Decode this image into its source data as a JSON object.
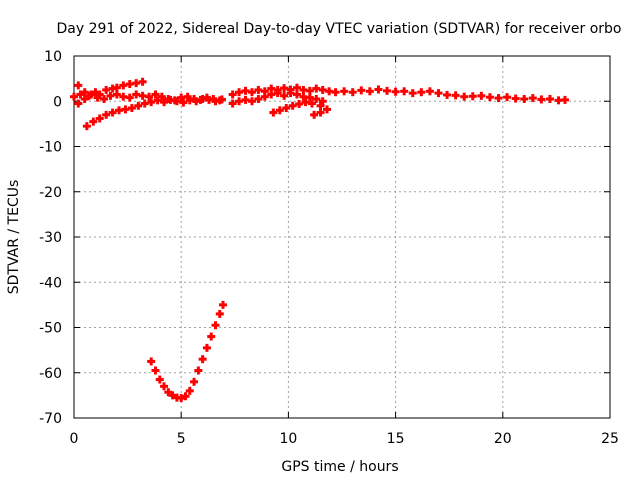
{
  "chart_data": {
    "type": "scatter",
    "title": "Day 291 of 2022, Sidereal Day-to-day VTEC variation (SDTVAR) for receiver orbo",
    "xlabel": "GPS time / hours",
    "ylabel": "SDTVAR / TECUs",
    "xlim": [
      0,
      25
    ],
    "ylim": [
      -70,
      10
    ],
    "xticks": [
      0,
      5,
      10,
      15,
      20,
      25
    ],
    "yticks": [
      10,
      0,
      -10,
      -20,
      -30,
      -40,
      -50,
      -60,
      -70
    ],
    "grid": true,
    "marker": "+",
    "series": [
      {
        "name": "SDTVAR",
        "color": "#ff0000",
        "points": [
          [
            0.0,
            1.0
          ],
          [
            0.2,
            3.5
          ],
          [
            0.3,
            1.5
          ],
          [
            0.5,
            2.0
          ],
          [
            0.7,
            1.2
          ],
          [
            1.0,
            2.0
          ],
          [
            1.2,
            1.5
          ],
          [
            1.5,
            2.5
          ],
          [
            1.8,
            2.8
          ],
          [
            2.0,
            3.0
          ],
          [
            2.3,
            3.5
          ],
          [
            2.6,
            3.8
          ],
          [
            2.9,
            4.0
          ],
          [
            3.2,
            4.3
          ],
          [
            0.2,
            -0.5
          ],
          [
            0.5,
            0.5
          ],
          [
            0.8,
            1.5
          ],
          [
            1.1,
            0.8
          ],
          [
            1.4,
            0.5
          ],
          [
            1.7,
            1.2
          ],
          [
            2.0,
            1.5
          ],
          [
            2.3,
            1.0
          ],
          [
            2.6,
            0.8
          ],
          [
            2.9,
            1.5
          ],
          [
            3.2,
            1.2
          ],
          [
            3.5,
            1.0
          ],
          [
            3.8,
            1.5
          ],
          [
            4.1,
            1.0
          ],
          [
            4.4,
            0.5
          ],
          [
            4.7,
            0.2
          ],
          [
            5.0,
            0.8
          ],
          [
            5.3,
            1.0
          ],
          [
            5.6,
            0.5
          ],
          [
            5.9,
            0.3
          ],
          [
            6.2,
            0.8
          ],
          [
            6.5,
            0.5
          ],
          [
            6.8,
            0.2
          ],
          [
            0.6,
            -5.5
          ],
          [
            0.9,
            -4.5
          ],
          [
            1.2,
            -3.8
          ],
          [
            1.5,
            -3.0
          ],
          [
            1.8,
            -2.5
          ],
          [
            2.1,
            -2.0
          ],
          [
            2.4,
            -1.8
          ],
          [
            2.7,
            -1.5
          ],
          [
            3.0,
            -1.0
          ],
          [
            3.3,
            -0.5
          ],
          [
            3.6,
            -0.2
          ],
          [
            3.9,
            0.2
          ],
          [
            4.2,
            -0.2
          ],
          [
            4.5,
            0.3
          ],
          [
            4.8,
            0.0
          ],
          [
            5.1,
            -0.3
          ],
          [
            5.4,
            0.2
          ],
          [
            5.7,
            0.0
          ],
          [
            6.0,
            0.5
          ],
          [
            6.3,
            0.3
          ],
          [
            6.6,
            0.0
          ],
          [
            6.9,
            0.4
          ],
          [
            7.4,
            1.5
          ],
          [
            7.7,
            2.0
          ],
          [
            8.0,
            2.3
          ],
          [
            8.3,
            2.0
          ],
          [
            8.6,
            2.5
          ],
          [
            8.9,
            2.2
          ],
          [
            9.2,
            2.8
          ],
          [
            9.5,
            2.5
          ],
          [
            9.8,
            2.9
          ],
          [
            10.1,
            2.6
          ],
          [
            10.4,
            3.0
          ],
          [
            10.7,
            2.5
          ],
          [
            11.0,
            2.3
          ],
          [
            11.3,
            2.8
          ],
          [
            11.6,
            2.5
          ],
          [
            11.9,
            2.2
          ],
          [
            7.4,
            -0.5
          ],
          [
            7.7,
            0.0
          ],
          [
            8.0,
            0.3
          ],
          [
            8.3,
            0.0
          ],
          [
            8.6,
            0.5
          ],
          [
            8.9,
            1.0
          ],
          [
            9.2,
            1.5
          ],
          [
            9.5,
            1.8
          ],
          [
            9.8,
            1.2
          ],
          [
            10.1,
            1.8
          ],
          [
            10.4,
            1.5
          ],
          [
            10.7,
            1.0
          ],
          [
            11.0,
            0.8
          ],
          [
            11.3,
            0.5
          ],
          [
            11.6,
            0.0
          ],
          [
            9.3,
            -2.5
          ],
          [
            9.6,
            -2.0
          ],
          [
            9.9,
            -1.5
          ],
          [
            10.2,
            -1.0
          ],
          [
            10.5,
            -0.6
          ],
          [
            10.8,
            -0.2
          ],
          [
            11.1,
            -0.5
          ],
          [
            11.5,
            -1.0
          ],
          [
            11.2,
            -3.0
          ],
          [
            11.5,
            -2.5
          ],
          [
            11.8,
            -1.8
          ],
          [
            12.2,
            2.0
          ],
          [
            12.6,
            2.2
          ],
          [
            13.0,
            2.0
          ],
          [
            13.4,
            2.4
          ],
          [
            13.8,
            2.2
          ],
          [
            14.2,
            2.6
          ],
          [
            14.6,
            2.3
          ],
          [
            15.0,
            2.1
          ],
          [
            15.4,
            2.2
          ],
          [
            15.8,
            1.8
          ],
          [
            16.2,
            2.0
          ],
          [
            16.6,
            2.2
          ],
          [
            17.0,
            1.8
          ],
          [
            17.4,
            1.4
          ],
          [
            17.8,
            1.3
          ],
          [
            18.2,
            1.0
          ],
          [
            18.6,
            1.1
          ],
          [
            19.0,
            1.2
          ],
          [
            19.4,
            0.9
          ],
          [
            19.8,
            0.7
          ],
          [
            20.2,
            0.9
          ],
          [
            20.6,
            0.6
          ],
          [
            21.0,
            0.5
          ],
          [
            21.4,
            0.7
          ],
          [
            21.8,
            0.4
          ],
          [
            22.2,
            0.5
          ],
          [
            22.6,
            0.2
          ],
          [
            22.9,
            0.3
          ],
          [
            3.6,
            -57.5
          ],
          [
            3.8,
            -59.5
          ],
          [
            4.0,
            -61.5
          ],
          [
            4.2,
            -63.0
          ],
          [
            4.4,
            -64.3
          ],
          [
            4.6,
            -65.0
          ],
          [
            4.8,
            -65.5
          ],
          [
            5.0,
            -65.6
          ],
          [
            5.2,
            -65.2
          ],
          [
            5.4,
            -64.0
          ],
          [
            5.6,
            -62.0
          ],
          [
            5.8,
            -59.5
          ],
          [
            6.0,
            -57.0
          ],
          [
            6.2,
            -54.5
          ],
          [
            6.4,
            -52.0
          ],
          [
            6.6,
            -49.5
          ],
          [
            6.8,
            -47.0
          ],
          [
            6.95,
            -45.0
          ]
        ]
      }
    ]
  }
}
